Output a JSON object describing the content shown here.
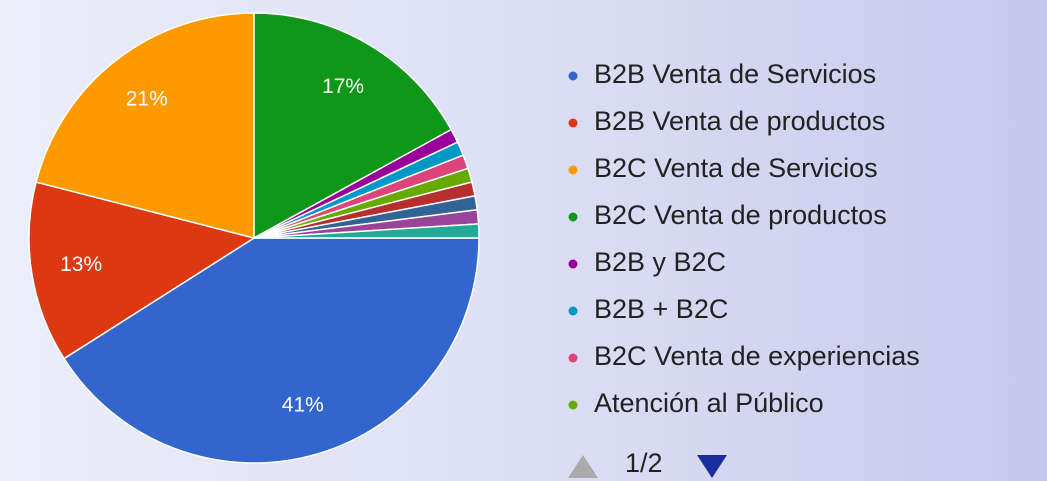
{
  "chart_data": {
    "type": "pie",
    "categories": [
      "B2B Venta de Servicios",
      "B2B Venta de productos",
      "B2C Venta de Servicios",
      "B2C Venta de productos",
      "B2B y B2C",
      "B2B + B2C",
      "B2C Venta de experiencias",
      "Atención al Público",
      null,
      null,
      null,
      null
    ],
    "values": [
      41,
      13,
      21,
      17,
      1,
      1,
      1,
      1,
      1,
      1,
      1,
      1
    ],
    "value_labels": [
      "41%",
      "13%",
      "21%",
      "17%",
      null,
      null,
      null,
      null,
      null,
      null,
      null,
      null
    ],
    "colors": [
      "#3366cc",
      "#dc3912",
      "#ff9900",
      "#109618",
      "#990099",
      "#0099c6",
      "#dd4477",
      "#66aa00",
      "#b82e2e",
      "#316395",
      "#994499",
      "#22aa99"
    ],
    "legend": "right",
    "legend_page": "1/2"
  }
}
